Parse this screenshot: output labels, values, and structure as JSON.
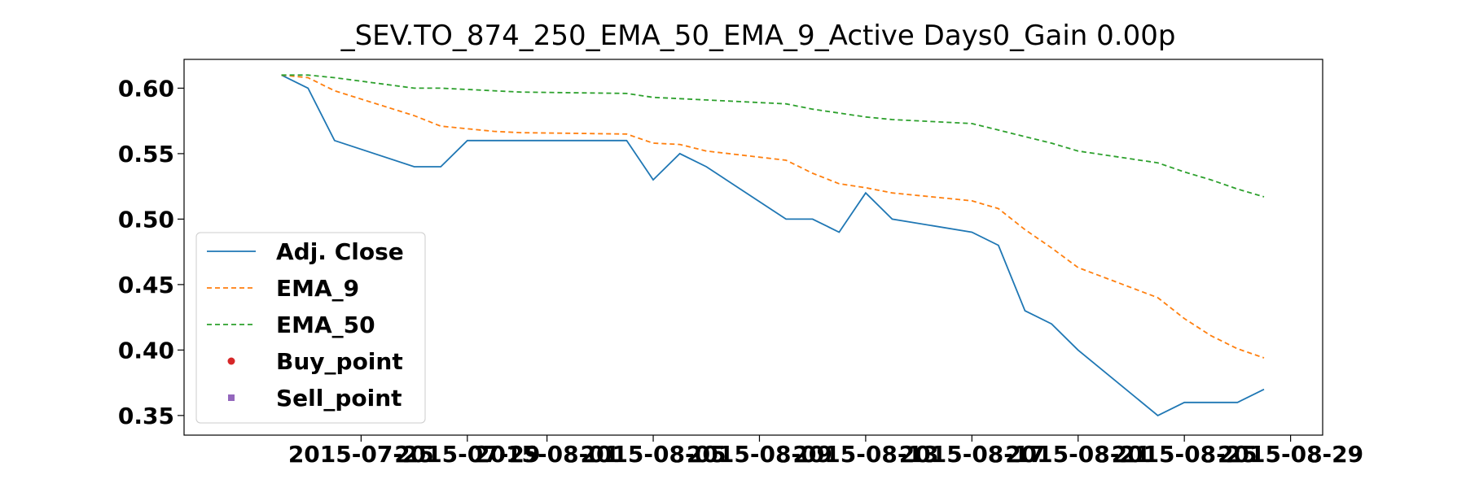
{
  "chart_data": {
    "type": "line",
    "title": "_SEV.TO_874_250_EMA_50_EMA_9_Active Days0_Gain   0.00p",
    "xlabel": "",
    "ylabel": "",
    "x_dates": [
      "2015-07-22",
      "2015-07-23",
      "2015-07-24",
      "2015-07-27",
      "2015-07-28",
      "2015-07-29",
      "2015-07-30",
      "2015-07-31",
      "2015-08-04",
      "2015-08-05",
      "2015-08-06",
      "2015-08-07",
      "2015-08-10",
      "2015-08-11",
      "2015-08-12",
      "2015-08-13",
      "2015-08-14",
      "2015-08-17",
      "2015-08-18",
      "2015-08-19",
      "2015-08-20",
      "2015-08-21",
      "2015-08-24",
      "2015-08-25",
      "2015-08-26",
      "2015-08-27",
      "2015-08-28"
    ],
    "series": [
      {
        "name": "Adj. Close",
        "color": "#1f77b4",
        "style": "solid",
        "values": [
          0.61,
          0.6,
          0.56,
          0.54,
          0.54,
          0.56,
          0.56,
          0.56,
          0.56,
          0.53,
          0.55,
          0.54,
          0.5,
          0.5,
          0.49,
          0.52,
          0.5,
          0.49,
          0.48,
          0.43,
          0.42,
          0.4,
          0.35,
          0.36,
          0.36,
          0.36,
          0.37
        ]
      },
      {
        "name": "EMA_9",
        "color": "#ff7f0e",
        "style": "dashed",
        "values": [
          0.61,
          0.608,
          0.598,
          0.579,
          0.571,
          0.569,
          0.567,
          0.566,
          0.565,
          0.558,
          0.557,
          0.552,
          0.545,
          0.535,
          0.527,
          0.524,
          0.52,
          0.514,
          0.508,
          0.492,
          0.478,
          0.463,
          0.44,
          0.424,
          0.411,
          0.401,
          0.394
        ]
      },
      {
        "name": "EMA_50",
        "color": "#2ca02c",
        "style": "dashed",
        "values": [
          0.61,
          0.61,
          0.608,
          0.6,
          0.6,
          0.599,
          0.598,
          0.597,
          0.596,
          0.593,
          0.592,
          0.591,
          0.588,
          0.584,
          0.581,
          0.578,
          0.576,
          0.573,
          0.568,
          0.563,
          0.558,
          0.552,
          0.543,
          0.536,
          0.53,
          0.523,
          0.517
        ]
      },
      {
        "name": "Buy_point",
        "color": "#d62728",
        "marker": "circle",
        "values": []
      },
      {
        "name": "Sell_point",
        "color": "#9467bd",
        "marker": "square",
        "values": []
      }
    ],
    "x_ticks": [
      "2015-07-25",
      "2015-07-29",
      "2015-08-01",
      "2015-08-05",
      "2015-08-09",
      "2015-08-13",
      "2015-08-17",
      "2015-08-21",
      "2015-08-25",
      "2015-08-29"
    ],
    "y_ticks": [
      "0.35",
      "0.40",
      "0.45",
      "0.50",
      "0.55",
      "0.60"
    ],
    "ylim": [
      0.335,
      0.622
    ],
    "legend": "lower-left",
    "grid": false
  }
}
